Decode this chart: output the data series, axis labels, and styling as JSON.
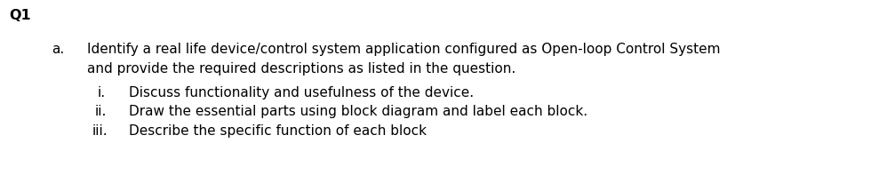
{
  "background_color": "#ffffff",
  "q1_label": "Q1",
  "q1_fontsize": 11.5,
  "q1_fontweight": "bold",
  "a_label": "a.",
  "a_fontsize": 11,
  "line1_text": "Identify a real life device/control system application configured as Open-loop Control System",
  "line2_text": "and provide the required descriptions as listed in the question.",
  "body_fontsize": 11,
  "i_label": "i.",
  "i_text": "Discuss functionality and usefulness of the device.",
  "ii_label": "ii.",
  "ii_text": "Draw the essential parts using block diagram and label each block.",
  "iii_label": "iii.",
  "iii_text": "Describe the specific function of each block",
  "sub_fontsize": 11,
  "font_family": "DejaVu Sans"
}
